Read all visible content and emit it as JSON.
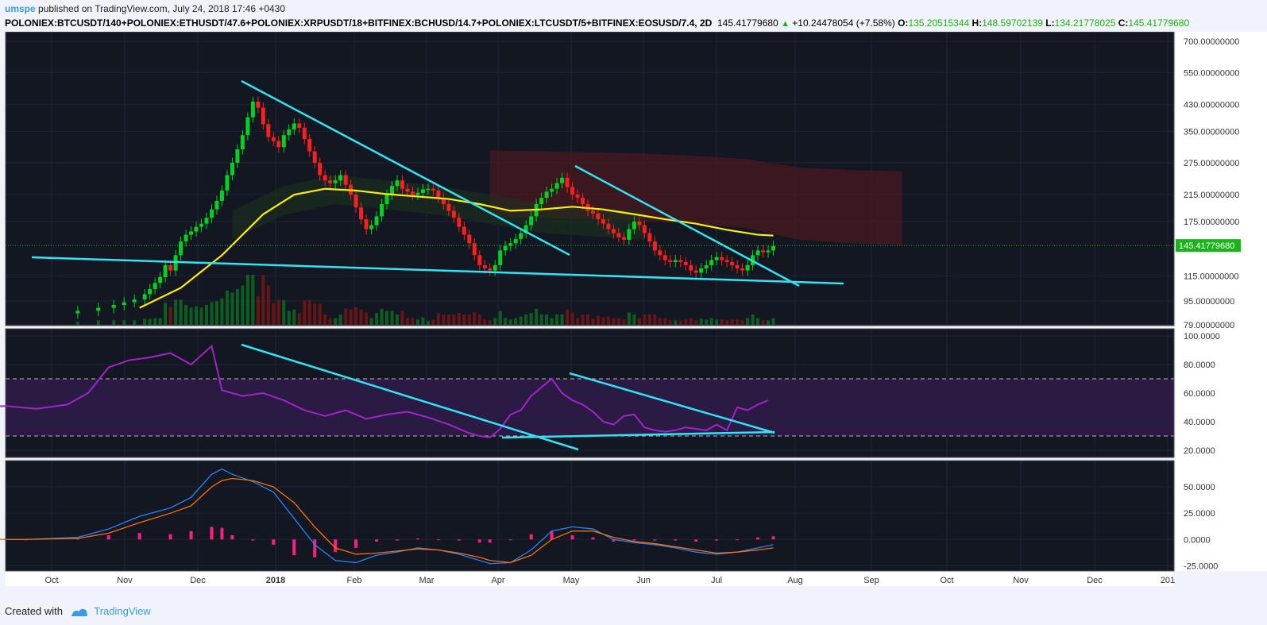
{
  "header": {
    "author": "umspe",
    "published_text": "published on TradingView.com, July 24, 2018 17:46 +0430",
    "symbol": "POLONIEX:BTCUSDT/140+POLONIEX:ETHUSDT/47.6+POLONIEX:XRPUSDT/18+BITFINEX:BCHUSD/14.7+POLONIEX:LTCUSDT/5+BITFINEX:EOSUSD/7.4, 2D",
    "price": "145.41779680",
    "change": "+10.24478054 (+7.58%)",
    "o_label": "O:",
    "o_value": "135.20515344",
    "h_label": "H:",
    "h_value": "148.59702139",
    "l_label": "L:",
    "l_value": "134.21778025",
    "c_label": "C:",
    "c_value": "145.41779680"
  },
  "footer": {
    "created_with": "Created with",
    "brand": "TradingView"
  },
  "colors": {
    "bg": "#131722",
    "grid": "#1f2433",
    "bull": "#00d223",
    "bear": "#ff1f1f",
    "trend": "#31e3f4",
    "ma": "#ffee00",
    "rsi": "#a322c9",
    "rsi_band": "#2a1a44",
    "macd": "#1e88ff",
    "signal": "#ff6d00",
    "hist": "#ff1f80",
    "cloud_red": "#4a1a20",
    "cloud_green": "#1d3020",
    "price_tag": "#19b31a"
  },
  "chart_data": [
    {
      "type": "candlestick",
      "name": "price",
      "scale": "log",
      "ylim": [
        79,
        700
      ],
      "y_ticks": [
        "700.00000000",
        "550.00000000",
        "430.00000000",
        "350.00000000",
        "275.00000000",
        "215.00000000",
        "175.00000000",
        "115.00000000",
        "95.00000000",
        "79.00000000"
      ],
      "x_ticks": [
        "Oct",
        "Nov",
        "Dec",
        "2018",
        "Feb",
        "Mar",
        "Apr",
        "May",
        "Jun",
        "Jul",
        "Aug",
        "Sep",
        "Oct",
        "Nov",
        "Dec",
        "201"
      ],
      "current_price_label": "145.41779680",
      "close_points": [
        [
          20,
          88
        ],
        [
          24,
          90
        ],
        [
          27,
          92
        ],
        [
          29,
          94
        ],
        [
          31,
          96
        ],
        [
          33,
          100
        ],
        [
          34,
          104
        ],
        [
          35,
          109
        ],
        [
          36,
          114
        ],
        [
          37,
          125
        ],
        [
          38,
          120
        ],
        [
          39,
          135
        ],
        [
          40,
          150
        ],
        [
          41,
          158
        ],
        [
          42,
          162
        ],
        [
          43,
          168
        ],
        [
          44,
          172
        ],
        [
          45,
          180
        ],
        [
          46,
          192
        ],
        [
          47,
          205
        ],
        [
          48,
          222
        ],
        [
          49,
          250
        ],
        [
          50,
          275
        ],
        [
          51,
          305
        ],
        [
          52,
          340
        ],
        [
          53,
          390
        ],
        [
          54,
          440
        ],
        [
          55,
          420
        ],
        [
          56,
          370
        ],
        [
          57,
          335
        ],
        [
          58,
          325
        ],
        [
          59,
          310
        ],
        [
          60,
          340
        ],
        [
          61,
          355
        ],
        [
          62,
          372
        ],
        [
          63,
          360
        ],
        [
          64,
          330
        ],
        [
          65,
          300
        ],
        [
          66,
          275
        ],
        [
          67,
          250
        ],
        [
          68,
          240
        ],
        [
          69,
          235
        ],
        [
          70,
          240
        ],
        [
          71,
          250
        ],
        [
          72,
          232
        ],
        [
          73,
          215
        ],
        [
          74,
          195
        ],
        [
          75,
          178
        ],
        [
          76,
          165
        ],
        [
          77,
          170
        ],
        [
          78,
          182
        ],
        [
          79,
          200
        ],
        [
          80,
          215
        ],
        [
          81,
          230
        ],
        [
          82,
          240
        ],
        [
          83,
          225
        ],
        [
          84,
          220
        ],
        [
          85,
          215
        ],
        [
          86,
          218
        ],
        [
          87,
          224
        ],
        [
          88,
          225
        ],
        [
          89,
          222
        ],
        [
          90,
          210
        ],
        [
          91,
          200
        ],
        [
          92,
          190
        ],
        [
          93,
          180
        ],
        [
          94,
          168
        ],
        [
          95,
          158
        ],
        [
          96,
          148
        ],
        [
          97,
          135
        ],
        [
          98,
          125
        ],
        [
          99,
          122
        ],
        [
          100,
          120
        ],
        [
          101,
          125
        ],
        [
          102,
          140
        ],
        [
          103,
          145
        ],
        [
          104,
          148
        ],
        [
          105,
          153
        ],
        [
          106,
          160
        ],
        [
          107,
          170
        ],
        [
          108,
          182
        ],
        [
          109,
          200
        ],
        [
          110,
          210
        ],
        [
          111,
          220
        ],
        [
          112,
          225
        ],
        [
          113,
          235
        ],
        [
          114,
          245
        ],
        [
          115,
          228
        ],
        [
          116,
          215
        ],
        [
          117,
          210
        ],
        [
          118,
          200
        ],
        [
          119,
          190
        ],
        [
          120,
          186
        ],
        [
          121,
          178
        ],
        [
          122,
          172
        ],
        [
          123,
          165
        ],
        [
          124,
          160
        ],
        [
          125,
          155
        ],
        [
          126,
          152
        ],
        [
          127,
          165
        ],
        [
          128,
          175
        ],
        [
          129,
          170
        ],
        [
          130,
          160
        ],
        [
          131,
          150
        ],
        [
          132,
          140
        ],
        [
          133,
          135
        ],
        [
          134,
          130
        ],
        [
          135,
          128
        ],
        [
          136,
          130
        ],
        [
          137,
          128
        ],
        [
          138,
          125
        ],
        [
          139,
          120
        ],
        [
          140,
          118
        ],
        [
          141,
          122
        ],
        [
          142,
          125
        ],
        [
          143,
          130
        ],
        [
          144,
          133
        ],
        [
          145,
          130
        ],
        [
          146,
          128
        ],
        [
          147,
          125
        ],
        [
          148,
          122
        ],
        [
          149,
          120
        ],
        [
          150,
          125
        ],
        [
          151,
          135
        ],
        [
          152,
          140
        ],
        [
          153,
          138
        ],
        [
          154,
          140
        ],
        [
          155,
          145
        ]
      ],
      "ma_points": [
        [
          32,
          90
        ],
        [
          40,
          105
        ],
        [
          48,
          135
        ],
        [
          56,
          185
        ],
        [
          62,
          215
        ],
        [
          68,
          225
        ],
        [
          74,
          222
        ],
        [
          80,
          216
        ],
        [
          86,
          212
        ],
        [
          92,
          208
        ],
        [
          98,
          200
        ],
        [
          104,
          190
        ],
        [
          110,
          192
        ],
        [
          116,
          196
        ],
        [
          122,
          192
        ],
        [
          128,
          185
        ],
        [
          134,
          178
        ],
        [
          140,
          172
        ],
        [
          146,
          164
        ],
        [
          152,
          158
        ],
        [
          155,
          157
        ]
      ],
      "volume_note": "volume histogram along bottom of price pane"
    },
    {
      "type": "line",
      "name": "RSI",
      "ylim": [
        15,
        105
      ],
      "y_ticks": [
        "100.0000",
        "80.0000",
        "60.0000",
        "40.0000",
        "20.0000"
      ],
      "bands": [
        30,
        70
      ],
      "points": [
        [
          0,
          50
        ],
        [
          6,
          51
        ],
        [
          12,
          49
        ],
        [
          18,
          52
        ],
        [
          22,
          60
        ],
        [
          26,
          78
        ],
        [
          30,
          83
        ],
        [
          34,
          85
        ],
        [
          38,
          88
        ],
        [
          42,
          80
        ],
        [
          46,
          93
        ],
        [
          48,
          62
        ],
        [
          52,
          58
        ],
        [
          56,
          60
        ],
        [
          60,
          55
        ],
        [
          64,
          48
        ],
        [
          68,
          44
        ],
        [
          72,
          48
        ],
        [
          76,
          42
        ],
        [
          80,
          45
        ],
        [
          84,
          47
        ],
        [
          88,
          43
        ],
        [
          92,
          38
        ],
        [
          96,
          32
        ],
        [
          98,
          30
        ],
        [
          100,
          29
        ],
        [
          102,
          35
        ],
        [
          104,
          45
        ],
        [
          106,
          48
        ],
        [
          108,
          58
        ],
        [
          110,
          64
        ],
        [
          112,
          70
        ],
        [
          114,
          60
        ],
        [
          116,
          55
        ],
        [
          118,
          52
        ],
        [
          120,
          47
        ],
        [
          122,
          40
        ],
        [
          124,
          38
        ],
        [
          126,
          44
        ],
        [
          128,
          45
        ],
        [
          130,
          36
        ],
        [
          132,
          34
        ],
        [
          134,
          33
        ],
        [
          136,
          34
        ],
        [
          138,
          36
        ],
        [
          140,
          35
        ],
        [
          142,
          34
        ],
        [
          144,
          38
        ],
        [
          146,
          34
        ],
        [
          148,
          50
        ],
        [
          150,
          48
        ],
        [
          152,
          52
        ],
        [
          154,
          55
        ]
      ]
    },
    {
      "type": "line",
      "name": "MACD",
      "ylim": [
        -30,
        75
      ],
      "y_ticks": [
        "50.0000",
        "25.0000",
        "0.0000",
        "-25.0000"
      ],
      "macd": [
        [
          0,
          0
        ],
        [
          10,
          0
        ],
        [
          20,
          2
        ],
        [
          26,
          10
        ],
        [
          32,
          22
        ],
        [
          38,
          30
        ],
        [
          42,
          40
        ],
        [
          46,
          62
        ],
        [
          48,
          67
        ],
        [
          50,
          62
        ],
        [
          54,
          55
        ],
        [
          58,
          45
        ],
        [
          62,
          20
        ],
        [
          66,
          -5
        ],
        [
          70,
          -20
        ],
        [
          74,
          -22
        ],
        [
          78,
          -15
        ],
        [
          82,
          -12
        ],
        [
          86,
          -8
        ],
        [
          90,
          -10
        ],
        [
          94,
          -14
        ],
        [
          98,
          -20
        ],
        [
          100,
          -23
        ],
        [
          104,
          -22
        ],
        [
          108,
          -10
        ],
        [
          112,
          8
        ],
        [
          116,
          12
        ],
        [
          120,
          10
        ],
        [
          124,
          0
        ],
        [
          128,
          -3
        ],
        [
          132,
          -5
        ],
        [
          136,
          -8
        ],
        [
          140,
          -12
        ],
        [
          144,
          -14
        ],
        [
          148,
          -12
        ],
        [
          152,
          -8
        ],
        [
          155,
          -5
        ]
      ],
      "signal": [
        [
          0,
          0
        ],
        [
          10,
          0
        ],
        [
          20,
          1
        ],
        [
          26,
          6
        ],
        [
          32,
          16
        ],
        [
          38,
          25
        ],
        [
          42,
          32
        ],
        [
          46,
          50
        ],
        [
          48,
          56
        ],
        [
          50,
          58
        ],
        [
          54,
          56
        ],
        [
          58,
          50
        ],
        [
          62,
          35
        ],
        [
          66,
          12
        ],
        [
          70,
          -8
        ],
        [
          74,
          -14
        ],
        [
          78,
          -13
        ],
        [
          82,
          -11
        ],
        [
          86,
          -9
        ],
        [
          90,
          -10
        ],
        [
          94,
          -13
        ],
        [
          98,
          -17
        ],
        [
          100,
          -20
        ],
        [
          104,
          -22
        ],
        [
          108,
          -15
        ],
        [
          112,
          0
        ],
        [
          116,
          8
        ],
        [
          120,
          8
        ],
        [
          124,
          2
        ],
        [
          128,
          -2
        ],
        [
          132,
          -4
        ],
        [
          136,
          -7
        ],
        [
          140,
          -10
        ],
        [
          144,
          -13
        ],
        [
          148,
          -12
        ],
        [
          152,
          -10
        ],
        [
          155,
          -8
        ]
      ]
    }
  ]
}
